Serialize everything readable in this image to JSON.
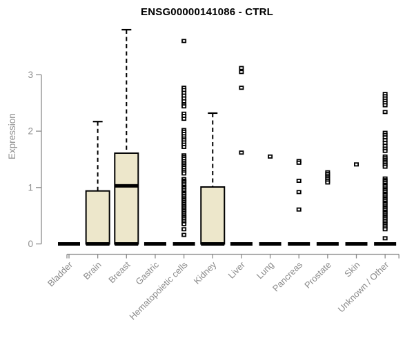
{
  "chart_data": {
    "type": "boxplot",
    "title": "ENSG00000141086 - CTRL",
    "ylabel": "Expression",
    "xlabel": "",
    "yticks": [
      0,
      1,
      2,
      3
    ],
    "ylim": [
      0,
      3.85
    ],
    "grid": false,
    "legend": "none",
    "categories": [
      "Bladder",
      "Brain",
      "Breast",
      "Gastric",
      "Hematopoietic cells",
      "Kidney",
      "Liver",
      "Lung",
      "Pancreas",
      "Prostate",
      "Skin",
      "Unknown / Other"
    ],
    "series": [
      {
        "category": "Bladder",
        "q1": 0,
        "median": 0,
        "q3": 0,
        "whisker_low": 0,
        "whisker_high": 0,
        "outliers": []
      },
      {
        "category": "Brain",
        "q1": 0,
        "median": 0,
        "q3": 0.94,
        "whisker_low": 0,
        "whisker_high": 2.17,
        "outliers": []
      },
      {
        "category": "Breast",
        "q1": 0,
        "median": 1.03,
        "q3": 1.61,
        "whisker_low": 0,
        "whisker_high": 3.8,
        "outliers": []
      },
      {
        "category": "Gastric",
        "q1": 0,
        "median": 0,
        "q3": 0,
        "whisker_low": 0,
        "whisker_high": 0,
        "outliers": []
      },
      {
        "category": "Hematopoietic cells",
        "q1": 0,
        "median": 0,
        "q3": 0,
        "whisker_low": 0,
        "whisker_high": 0,
        "outliers": [
          3.6,
          2.77,
          2.73,
          2.68,
          2.63,
          2.58,
          2.53,
          2.47,
          2.44,
          2.31,
          2.27,
          2.22,
          2.02,
          1.99,
          1.95,
          1.91,
          1.87,
          1.84,
          1.8,
          1.76,
          1.72,
          1.57,
          1.54,
          1.51,
          1.47,
          1.44,
          1.41,
          1.38,
          1.35,
          1.31,
          1.28,
          1.25,
          1.15,
          1.12,
          1.1,
          1.07,
          1.04,
          1.01,
          0.99,
          0.96,
          0.93,
          0.9,
          0.88,
          0.85,
          0.82,
          0.79,
          0.77,
          0.74,
          0.71,
          0.68,
          0.66,
          0.63,
          0.6,
          0.58,
          0.55,
          0.52,
          0.49,
          0.47,
          0.44,
          0.41,
          0.38,
          0.35,
          0.26,
          0.16
        ]
      },
      {
        "category": "Kidney",
        "q1": 0,
        "median": 0,
        "q3": 1.01,
        "whisker_low": 0,
        "whisker_high": 2.32,
        "outliers": []
      },
      {
        "category": "Liver",
        "q1": 0,
        "median": 0,
        "q3": 0,
        "whisker_low": 0,
        "whisker_high": 0,
        "outliers": [
          3.12,
          3.05,
          2.77,
          1.62
        ]
      },
      {
        "category": "Lung",
        "q1": 0,
        "median": 0,
        "q3": 0,
        "whisker_low": 0,
        "whisker_high": 0,
        "outliers": [
          1.55
        ]
      },
      {
        "category": "Pancreas",
        "q1": 0,
        "median": 0,
        "q3": 0,
        "whisker_low": 0,
        "whisker_high": 0,
        "outliers": [
          1.47,
          1.44,
          1.12,
          0.92,
          0.61
        ]
      },
      {
        "category": "Prostate",
        "q1": 0,
        "median": 0,
        "q3": 0,
        "whisker_low": 0,
        "whisker_high": 0,
        "outliers": [
          1.27,
          1.24,
          1.21,
          1.18,
          1.15,
          1.12,
          1.09
        ]
      },
      {
        "category": "Skin",
        "q1": 0,
        "median": 0,
        "q3": 0,
        "whisker_low": 0,
        "whisker_high": 0,
        "outliers": [
          1.41
        ]
      },
      {
        "category": "Unknown / Other",
        "q1": 0,
        "median": 0,
        "q3": 0,
        "whisker_low": 0,
        "whisker_high": 0,
        "outliers": [
          2.66,
          2.62,
          2.58,
          2.54,
          2.5,
          2.46,
          2.34,
          1.97,
          1.93,
          1.89,
          1.84,
          1.79,
          1.74,
          1.69,
          1.65,
          1.55,
          1.52,
          1.49,
          1.46,
          1.43,
          1.4,
          1.37,
          1.16,
          1.13,
          1.11,
          1.08,
          1.05,
          1.03,
          1.0,
          0.97,
          0.95,
          0.92,
          0.89,
          0.87,
          0.84,
          0.81,
          0.79,
          0.76,
          0.73,
          0.71,
          0.68,
          0.65,
          0.63,
          0.6,
          0.57,
          0.55,
          0.52,
          0.49,
          0.47,
          0.44,
          0.41,
          0.38,
          0.35,
          0.32,
          0.29,
          0.26,
          0.1
        ]
      }
    ],
    "colors": {
      "box_fill": "#EDE7CB",
      "box_border": "#000000",
      "median": "#000000",
      "whisker": "#000000",
      "outlier": "#000000",
      "axis_line": "#8c8c8c",
      "axis_text": "#8a8a8a",
      "title_text": "#000000",
      "background": "#ffffff"
    }
  }
}
